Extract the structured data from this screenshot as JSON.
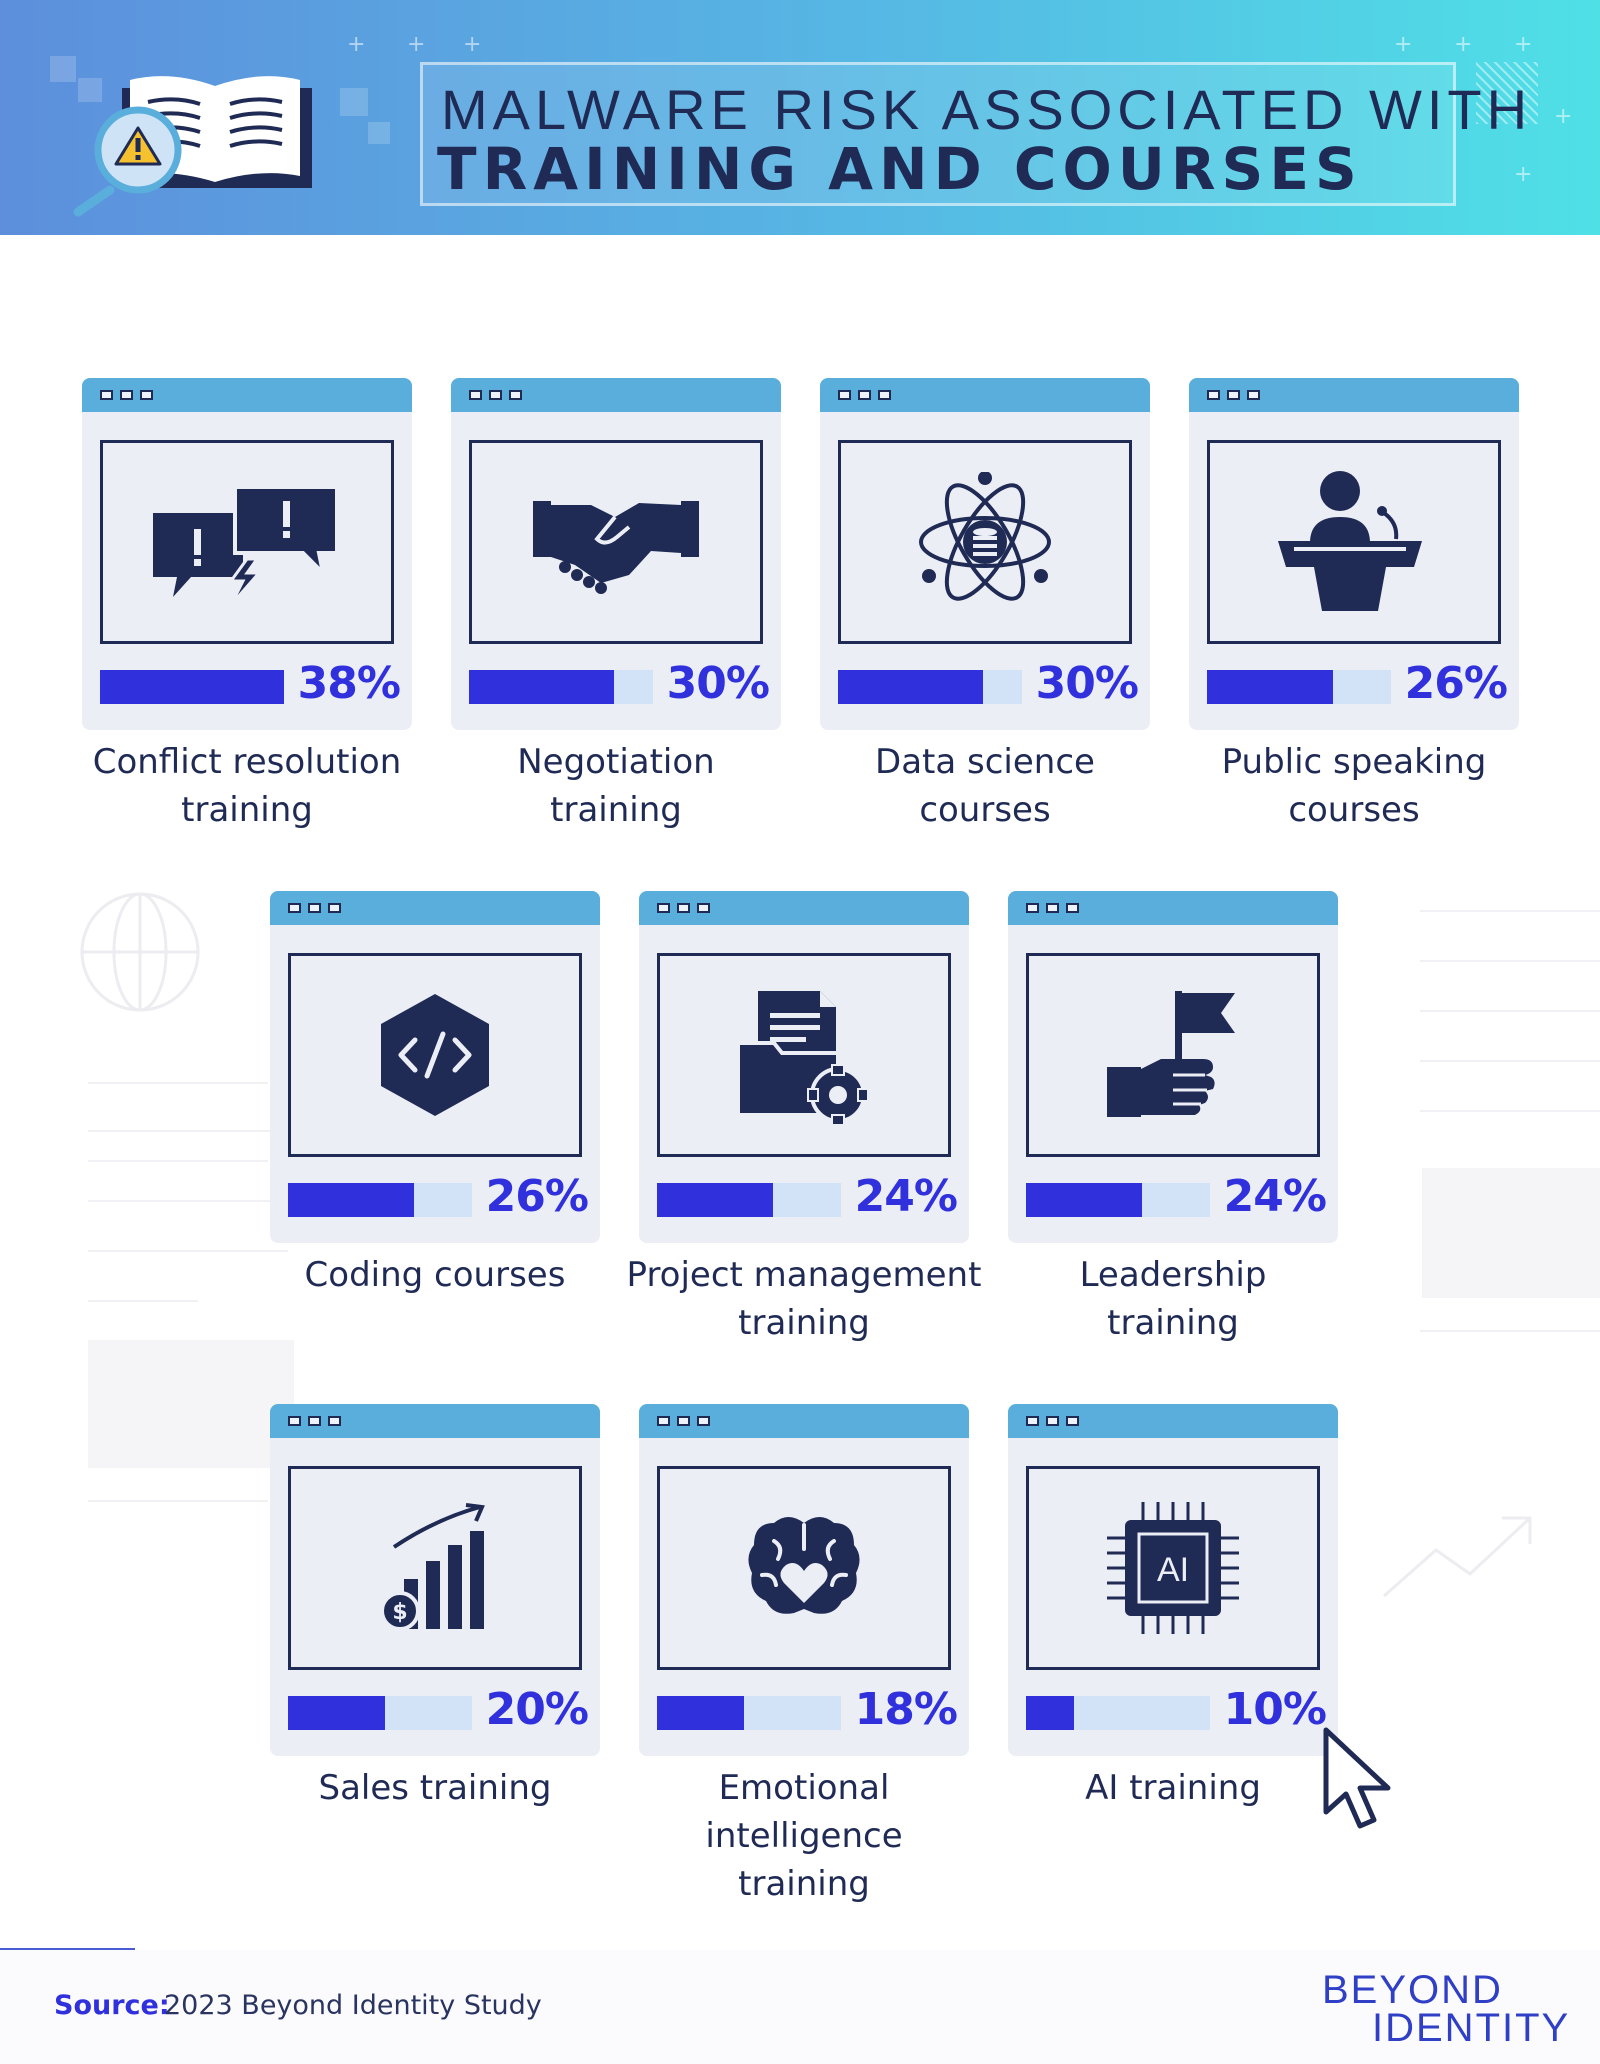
{
  "header": {
    "title_line1": "MALWARE RISK ASSOCIATED WITH",
    "title_line2": "TRAINING AND COURSES",
    "illustration_icon": "open-book-with-warning-magnifier-icon"
  },
  "colors": {
    "bar_fill": "#3030dc",
    "bar_track": "#d2e3f7",
    "card_bg": "#eceef6",
    "card_titlebar": "#5aaedc",
    "text_dark": "#1f2a55"
  },
  "cards": [
    {
      "label": "Conflict resolution training",
      "label_lines": [
        "Conflict resolution",
        "training"
      ],
      "percent_text": "38%",
      "value": 38,
      "icon": "speech-bubbles-conflict-icon"
    },
    {
      "label": "Negotiation training",
      "label_lines": [
        "Negotiation",
        "training"
      ],
      "percent_text": "30%",
      "value": 30,
      "icon": "handshake-icon"
    },
    {
      "label": "Data science courses",
      "label_lines": [
        "Data science",
        "courses"
      ],
      "percent_text": "30%",
      "value": 30,
      "icon": "atom-database-icon"
    },
    {
      "label": "Public speaking courses",
      "label_lines": [
        "Public speaking",
        "courses"
      ],
      "percent_text": "26%",
      "value": 26,
      "icon": "speaker-podium-icon"
    },
    {
      "label": "Coding courses",
      "label_lines": [
        "Coding courses"
      ],
      "percent_text": "26%",
      "value": 26,
      "icon": "code-hexagon-icon"
    },
    {
      "label": "Project management training",
      "label_lines": [
        "Project management",
        "training"
      ],
      "percent_text": "24%",
      "value": 24,
      "icon": "folder-document-gear-icon"
    },
    {
      "label": "Leadership training",
      "label_lines": [
        "Leadership",
        "training"
      ],
      "percent_text": "24%",
      "value": 24,
      "icon": "hand-holding-flag-icon"
    },
    {
      "label": "Sales training",
      "label_lines": [
        "Sales training"
      ],
      "percent_text": "20%",
      "value": 20,
      "icon": "sales-growth-chart-icon"
    },
    {
      "label": "Emotional intelligence training",
      "label_lines": [
        "Emotional intelligence",
        "training"
      ],
      "percent_text": "18%",
      "value": 18,
      "icon": "brain-heart-icon"
    },
    {
      "label": "AI training",
      "label_lines": [
        "AI training"
      ],
      "percent_text": "10%",
      "value": 10,
      "icon": "ai-chip-icon",
      "chip_text": "AI"
    }
  ],
  "bar_scale_max": 38,
  "footer": {
    "source_label": "Source:",
    "source_text": "2023 Beyond Identity Study",
    "logo_line1": "BEYOND",
    "logo_line2": "IDENTITY"
  }
}
